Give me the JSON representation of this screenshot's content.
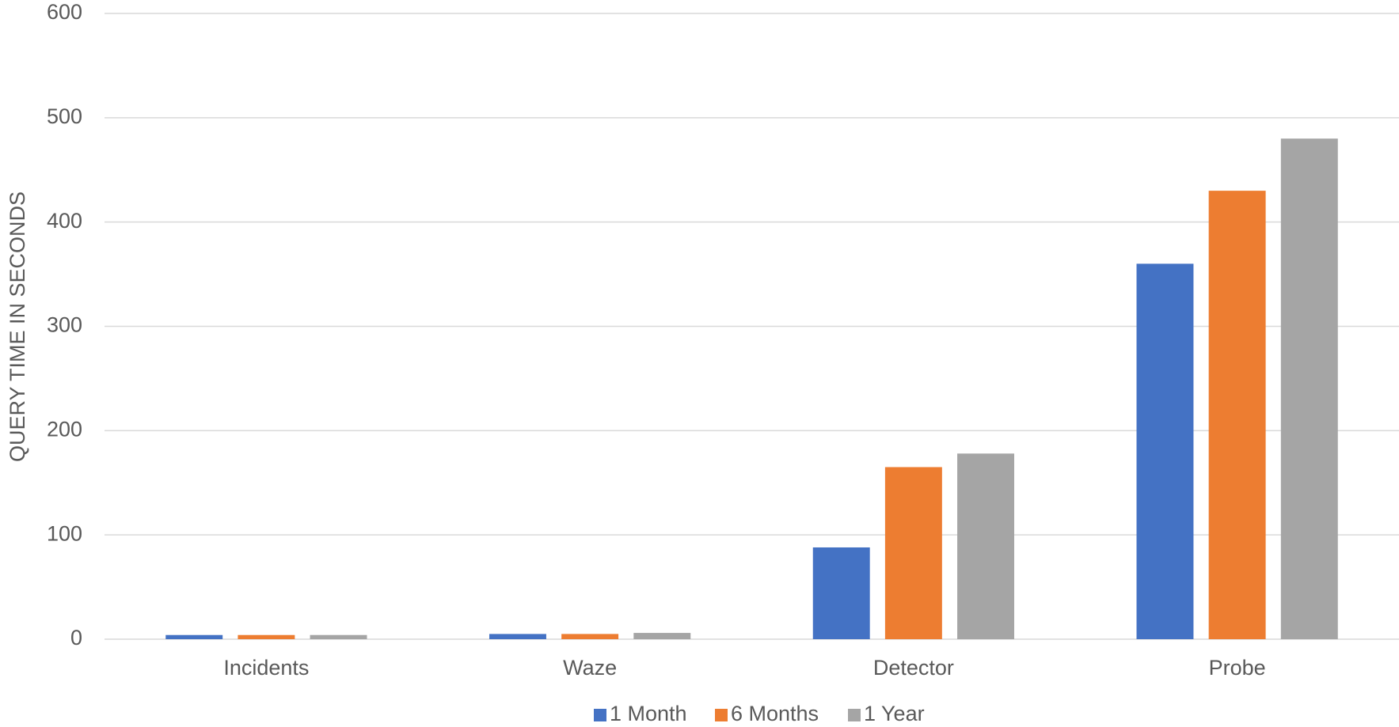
{
  "chart_data": {
    "type": "bar",
    "y_label": "QUERY TIME IN SECONDS",
    "categories": [
      "Incidents",
      "Waze",
      "Detector",
      "Probe"
    ],
    "series": [
      {
        "name": "1 Month",
        "color": "#4472c4",
        "values": [
          4,
          5,
          88,
          360
        ]
      },
      {
        "name": "6 Months",
        "color": "#ed7d31",
        "values": [
          4,
          5,
          165,
          430
        ]
      },
      {
        "name": "1 Year",
        "color": "#a5a5a5",
        "values": [
          4,
          6,
          178,
          480
        ]
      }
    ],
    "ylim": [
      0,
      600
    ],
    "yticks": [
      0,
      100,
      200,
      300,
      400,
      500,
      600
    ],
    "grid": true,
    "legend": "bottom"
  }
}
